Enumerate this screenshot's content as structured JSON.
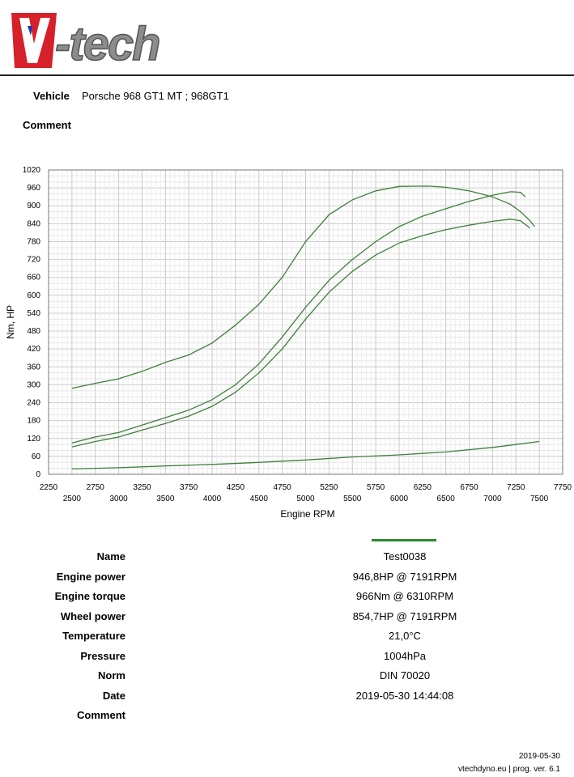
{
  "header": {
    "logo_text": "V-tech",
    "vehicle_label": "Vehicle",
    "vehicle_value": "Porsche 968 GT1 MT ; 968GT1",
    "comment_label": "Comment"
  },
  "colors": {
    "curve": "#3f7f3a",
    "legend": "#2e8b2e",
    "logo_red": "#d6202a",
    "logo_grey": "#8c8c8c",
    "grid": "#d9d9d9"
  },
  "chart_data": {
    "type": "line",
    "title": "",
    "xlabel": "Engine RPM",
    "ylabel": "Nm, HP",
    "xlim": [
      2250,
      7750
    ],
    "ylim": [
      0,
      1020
    ],
    "x_ticks_top": [
      "2250",
      "2750",
      "3250",
      "3750",
      "4250",
      "4750",
      "5250",
      "5750",
      "6250",
      "6750",
      "7250",
      "7750"
    ],
    "x_ticks_bottom": [
      "2500",
      "3000",
      "3500",
      "4000",
      "4500",
      "5000",
      "5500",
      "6000",
      "6500",
      "7000",
      "7500"
    ],
    "y_ticks": [
      "0",
      "60",
      "120",
      "180",
      "240",
      "300",
      "360",
      "420",
      "480",
      "540",
      "600",
      "660",
      "720",
      "780",
      "840",
      "900",
      "960",
      "1020"
    ],
    "grid": true,
    "series": [
      {
        "x": [
          2500,
          2750,
          3000,
          3250,
          3500,
          3750,
          4000,
          4250,
          4500,
          4750,
          5000,
          5250,
          5500,
          5750,
          6000,
          6310,
          6500,
          6750,
          7000,
          7191,
          7300,
          7400,
          7450
        ],
        "y": [
          288,
          305,
          320,
          345,
          375,
          400,
          440,
          500,
          570,
          660,
          780,
          870,
          920,
          950,
          965,
          966,
          962,
          950,
          930,
          905,
          880,
          850,
          830
        ]
      },
      {
        "x": [
          2500,
          2750,
          3000,
          3250,
          3500,
          3750,
          4000,
          4250,
          4500,
          4750,
          5000,
          5250,
          5500,
          5750,
          6000,
          6250,
          6500,
          6750,
          7000,
          7191,
          7300,
          7350
        ],
        "y": [
          105,
          125,
          140,
          165,
          190,
          215,
          250,
          300,
          370,
          460,
          560,
          650,
          720,
          780,
          830,
          865,
          890,
          915,
          935,
          947,
          945,
          930
        ]
      },
      {
        "x": [
          2500,
          2750,
          3000,
          3250,
          3500,
          3750,
          4000,
          4250,
          4500,
          4750,
          5000,
          5250,
          5500,
          5750,
          6000,
          6250,
          6500,
          6750,
          7000,
          7191,
          7300,
          7400
        ],
        "y": [
          92,
          110,
          125,
          148,
          170,
          195,
          228,
          275,
          340,
          420,
          520,
          610,
          680,
          735,
          775,
          800,
          820,
          835,
          848,
          855,
          850,
          825
        ]
      },
      {
        "x": [
          2500,
          3000,
          3500,
          4000,
          4500,
          5000,
          5500,
          6000,
          6500,
          7000,
          7500
        ],
        "y": [
          18,
          22,
          28,
          33,
          40,
          48,
          58,
          65,
          75,
          90,
          110
        ]
      }
    ]
  },
  "legend": {
    "name_label": "Name"
  },
  "results": [
    {
      "label": "Name",
      "value": "Test0038"
    },
    {
      "label": "Engine power",
      "value": "946,8HP @  7191RPM"
    },
    {
      "label": "Engine torque",
      "value": "966Nm @ 6310RPM"
    },
    {
      "label": "Wheel power",
      "value": "854,7HP @  7191RPM"
    },
    {
      "label": "Temperature",
      "value": "21,0°C"
    },
    {
      "label": "Pressure",
      "value": "1004hPa"
    },
    {
      "label": "Norm",
      "value": "DIN 70020"
    },
    {
      "label": "Date",
      "value": "2019-05-30  14:44:08"
    },
    {
      "label": "Comment",
      "value": ""
    }
  ],
  "footer": {
    "date": "2019-05-30",
    "site": "vtechdyno.eu | prog. ver. 6.1"
  }
}
